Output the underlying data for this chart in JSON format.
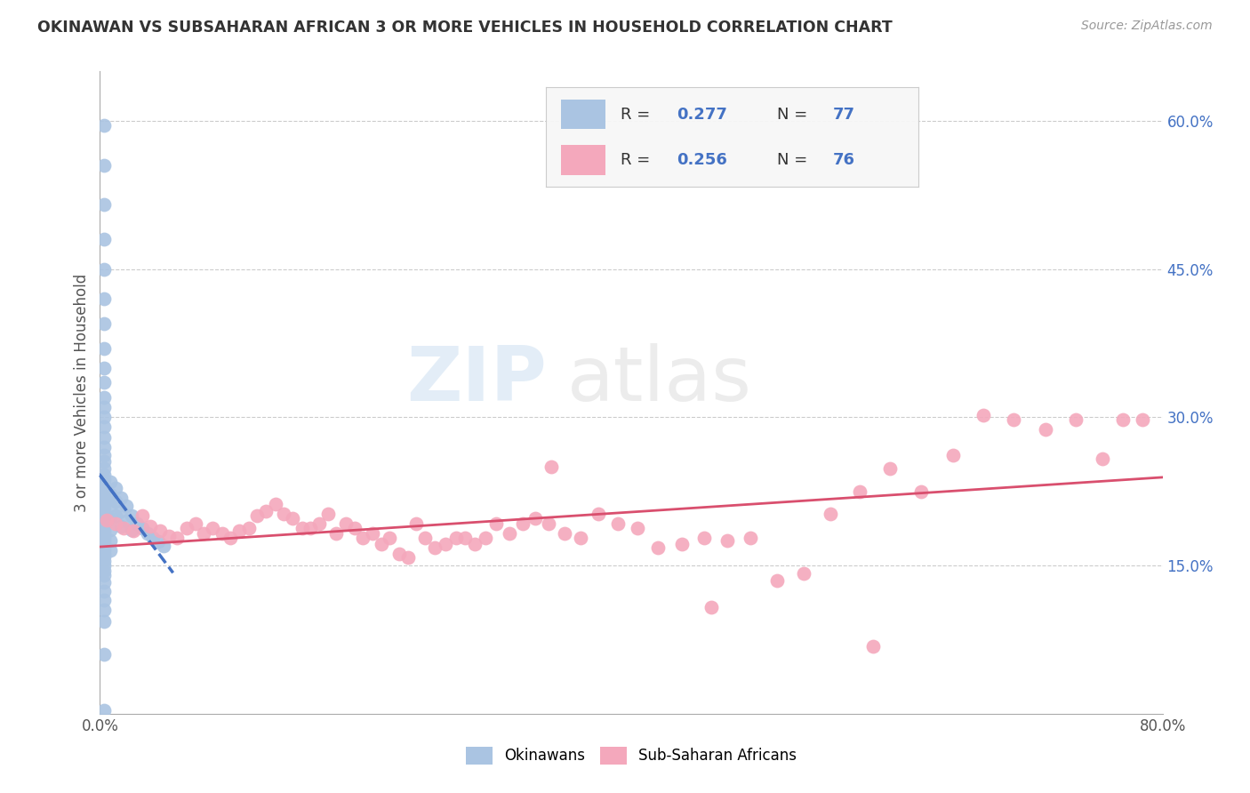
{
  "title": "OKINAWAN VS SUBSAHARAN AFRICAN 3 OR MORE VEHICLES IN HOUSEHOLD CORRELATION CHART",
  "source": "Source: ZipAtlas.com",
  "ylabel": "3 or more Vehicles in Household",
  "xlim": [
    0.0,
    0.8
  ],
  "ylim": [
    0.0,
    0.65
  ],
  "xticks": [
    0.0,
    0.1,
    0.2,
    0.3,
    0.4,
    0.5,
    0.6,
    0.7,
    0.8
  ],
  "xticklabels": [
    "0.0%",
    "",
    "",
    "",
    "",
    "",
    "",
    "",
    "80.0%"
  ],
  "ytick_positions": [
    0.15,
    0.3,
    0.45,
    0.6
  ],
  "ytick_labels": [
    "15.0%",
    "30.0%",
    "45.0%",
    "60.0%"
  ],
  "okinawan_color": "#aac4e2",
  "okinawan_line_color": "#4472c4",
  "subsaharan_color": "#f4a8bc",
  "subsaharan_line_color": "#d94f6e",
  "watermark": "ZIPatlas",
  "okinawan_x": [
    0.003,
    0.003,
    0.003,
    0.003,
    0.003,
    0.003,
    0.003,
    0.003,
    0.003,
    0.003,
    0.003,
    0.003,
    0.003,
    0.003,
    0.003,
    0.003,
    0.003,
    0.003,
    0.003,
    0.003,
    0.003,
    0.003,
    0.003,
    0.003,
    0.003,
    0.003,
    0.003,
    0.003,
    0.003,
    0.003,
    0.003,
    0.003,
    0.003,
    0.003,
    0.003,
    0.003,
    0.003,
    0.003,
    0.003,
    0.003,
    0.003,
    0.003,
    0.003,
    0.003,
    0.003,
    0.003,
    0.003,
    0.003,
    0.003,
    0.003,
    0.003,
    0.003,
    0.008,
    0.008,
    0.008,
    0.008,
    0.008,
    0.008,
    0.008,
    0.012,
    0.012,
    0.012,
    0.016,
    0.016,
    0.016,
    0.02,
    0.02,
    0.024,
    0.024,
    0.028,
    0.032,
    0.036,
    0.04,
    0.044,
    0.048,
    0.003,
    0.003
  ],
  "okinawan_y": [
    0.595,
    0.555,
    0.515,
    0.48,
    0.45,
    0.42,
    0.395,
    0.37,
    0.35,
    0.335,
    0.32,
    0.31,
    0.3,
    0.29,
    0.28,
    0.27,
    0.262,
    0.255,
    0.248,
    0.242,
    0.237,
    0.232,
    0.228,
    0.224,
    0.22,
    0.216,
    0.212,
    0.208,
    0.204,
    0.2,
    0.196,
    0.193,
    0.19,
    0.186,
    0.183,
    0.18,
    0.177,
    0.174,
    0.171,
    0.168,
    0.165,
    0.162,
    0.159,
    0.155,
    0.15,
    0.145,
    0.14,
    0.133,
    0.124,
    0.115,
    0.105,
    0.093,
    0.235,
    0.222,
    0.21,
    0.198,
    0.186,
    0.175,
    0.165,
    0.228,
    0.215,
    0.2,
    0.218,
    0.205,
    0.19,
    0.21,
    0.195,
    0.2,
    0.186,
    0.192,
    0.188,
    0.182,
    0.178,
    0.174,
    0.17,
    0.06,
    0.003
  ],
  "subsaharan_x": [
    0.005,
    0.012,
    0.018,
    0.025,
    0.032,
    0.038,
    0.045,
    0.052,
    0.058,
    0.065,
    0.072,
    0.078,
    0.085,
    0.092,
    0.098,
    0.105,
    0.112,
    0.118,
    0.125,
    0.132,
    0.138,
    0.145,
    0.152,
    0.158,
    0.165,
    0.172,
    0.178,
    0.185,
    0.192,
    0.198,
    0.205,
    0.212,
    0.218,
    0.225,
    0.232,
    0.238,
    0.245,
    0.252,
    0.26,
    0.268,
    0.275,
    0.282,
    0.29,
    0.298,
    0.308,
    0.318,
    0.328,
    0.338,
    0.35,
    0.362,
    0.375,
    0.39,
    0.405,
    0.42,
    0.438,
    0.455,
    0.472,
    0.49,
    0.51,
    0.53,
    0.55,
    0.572,
    0.595,
    0.618,
    0.642,
    0.665,
    0.688,
    0.712,
    0.735,
    0.755,
    0.77,
    0.785,
    0.34,
    0.46,
    0.582
  ],
  "subsaharan_y": [
    0.196,
    0.192,
    0.188,
    0.185,
    0.2,
    0.19,
    0.185,
    0.18,
    0.178,
    0.188,
    0.192,
    0.182,
    0.188,
    0.182,
    0.178,
    0.185,
    0.188,
    0.2,
    0.205,
    0.212,
    0.202,
    0.198,
    0.188,
    0.188,
    0.192,
    0.202,
    0.182,
    0.192,
    0.188,
    0.178,
    0.182,
    0.172,
    0.178,
    0.162,
    0.158,
    0.192,
    0.178,
    0.168,
    0.172,
    0.178,
    0.178,
    0.172,
    0.178,
    0.192,
    0.182,
    0.192,
    0.198,
    0.192,
    0.182,
    0.178,
    0.202,
    0.192,
    0.188,
    0.168,
    0.172,
    0.178,
    0.175,
    0.178,
    0.135,
    0.142,
    0.202,
    0.225,
    0.248,
    0.225,
    0.262,
    0.302,
    0.298,
    0.288,
    0.298,
    0.258,
    0.298,
    0.298,
    0.25,
    0.108,
    0.068
  ]
}
